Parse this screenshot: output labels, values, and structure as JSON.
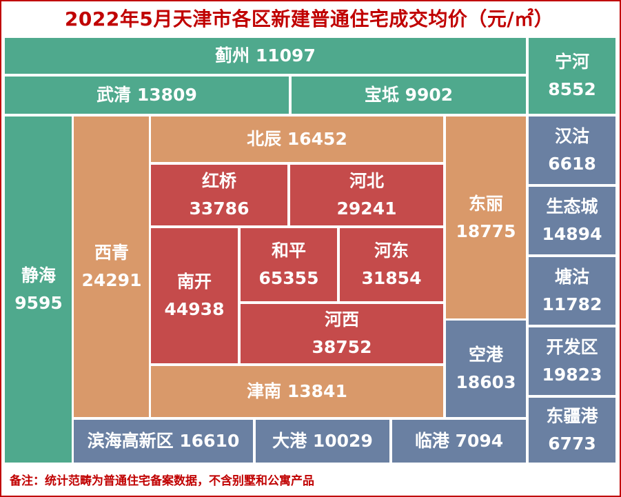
{
  "title": "2022年5月天津市各区新建普通住宅成交均价（元/㎡）",
  "note": "备注：统计范畴为普通住宅备案数据，不含别墅和公寓产品",
  "colors": {
    "teal": "#4fa98d",
    "orange": "#d9996a",
    "red": "#c54b4b",
    "slate": "#6a80a2",
    "title": "#c00000"
  },
  "chart_data": {
    "type": "treemap",
    "title": "2022年5月天津市各区新建普通住宅成交均价（元/㎡）",
    "unit": "元/㎡",
    "items": [
      {
        "name": "蓟州",
        "value": 11097,
        "color": "teal"
      },
      {
        "name": "宁河",
        "value": 8552,
        "color": "teal"
      },
      {
        "name": "武清",
        "value": 13809,
        "color": "teal"
      },
      {
        "name": "宝坻",
        "value": 9902,
        "color": "teal"
      },
      {
        "name": "静海",
        "value": 9595,
        "color": "teal"
      },
      {
        "name": "西青",
        "value": 24291,
        "color": "orange"
      },
      {
        "name": "北辰",
        "value": 16452,
        "color": "orange"
      },
      {
        "name": "东丽",
        "value": 18775,
        "color": "orange"
      },
      {
        "name": "津南",
        "value": 13841,
        "color": "orange"
      },
      {
        "name": "红桥",
        "value": 33786,
        "color": "red"
      },
      {
        "name": "河北",
        "value": 29241,
        "color": "red"
      },
      {
        "name": "南开",
        "value": 44938,
        "color": "red"
      },
      {
        "name": "和平",
        "value": 65355,
        "color": "red"
      },
      {
        "name": "河东",
        "value": 31854,
        "color": "red"
      },
      {
        "name": "河西",
        "value": 38752,
        "color": "red"
      },
      {
        "name": "空港",
        "value": 18603,
        "color": "slate"
      },
      {
        "name": "汉沽",
        "value": 6618,
        "color": "slate"
      },
      {
        "name": "生态城",
        "value": 14894,
        "color": "slate"
      },
      {
        "name": "塘沽",
        "value": 11782,
        "color": "slate"
      },
      {
        "name": "开发区",
        "value": 19823,
        "color": "slate"
      },
      {
        "name": "东疆港",
        "value": 6773,
        "color": "slate"
      },
      {
        "name": "滨海高新区",
        "value": 16610,
        "color": "slate"
      },
      {
        "name": "大港",
        "value": 10029,
        "color": "slate"
      },
      {
        "name": "临港",
        "value": 7094,
        "color": "slate"
      }
    ]
  }
}
